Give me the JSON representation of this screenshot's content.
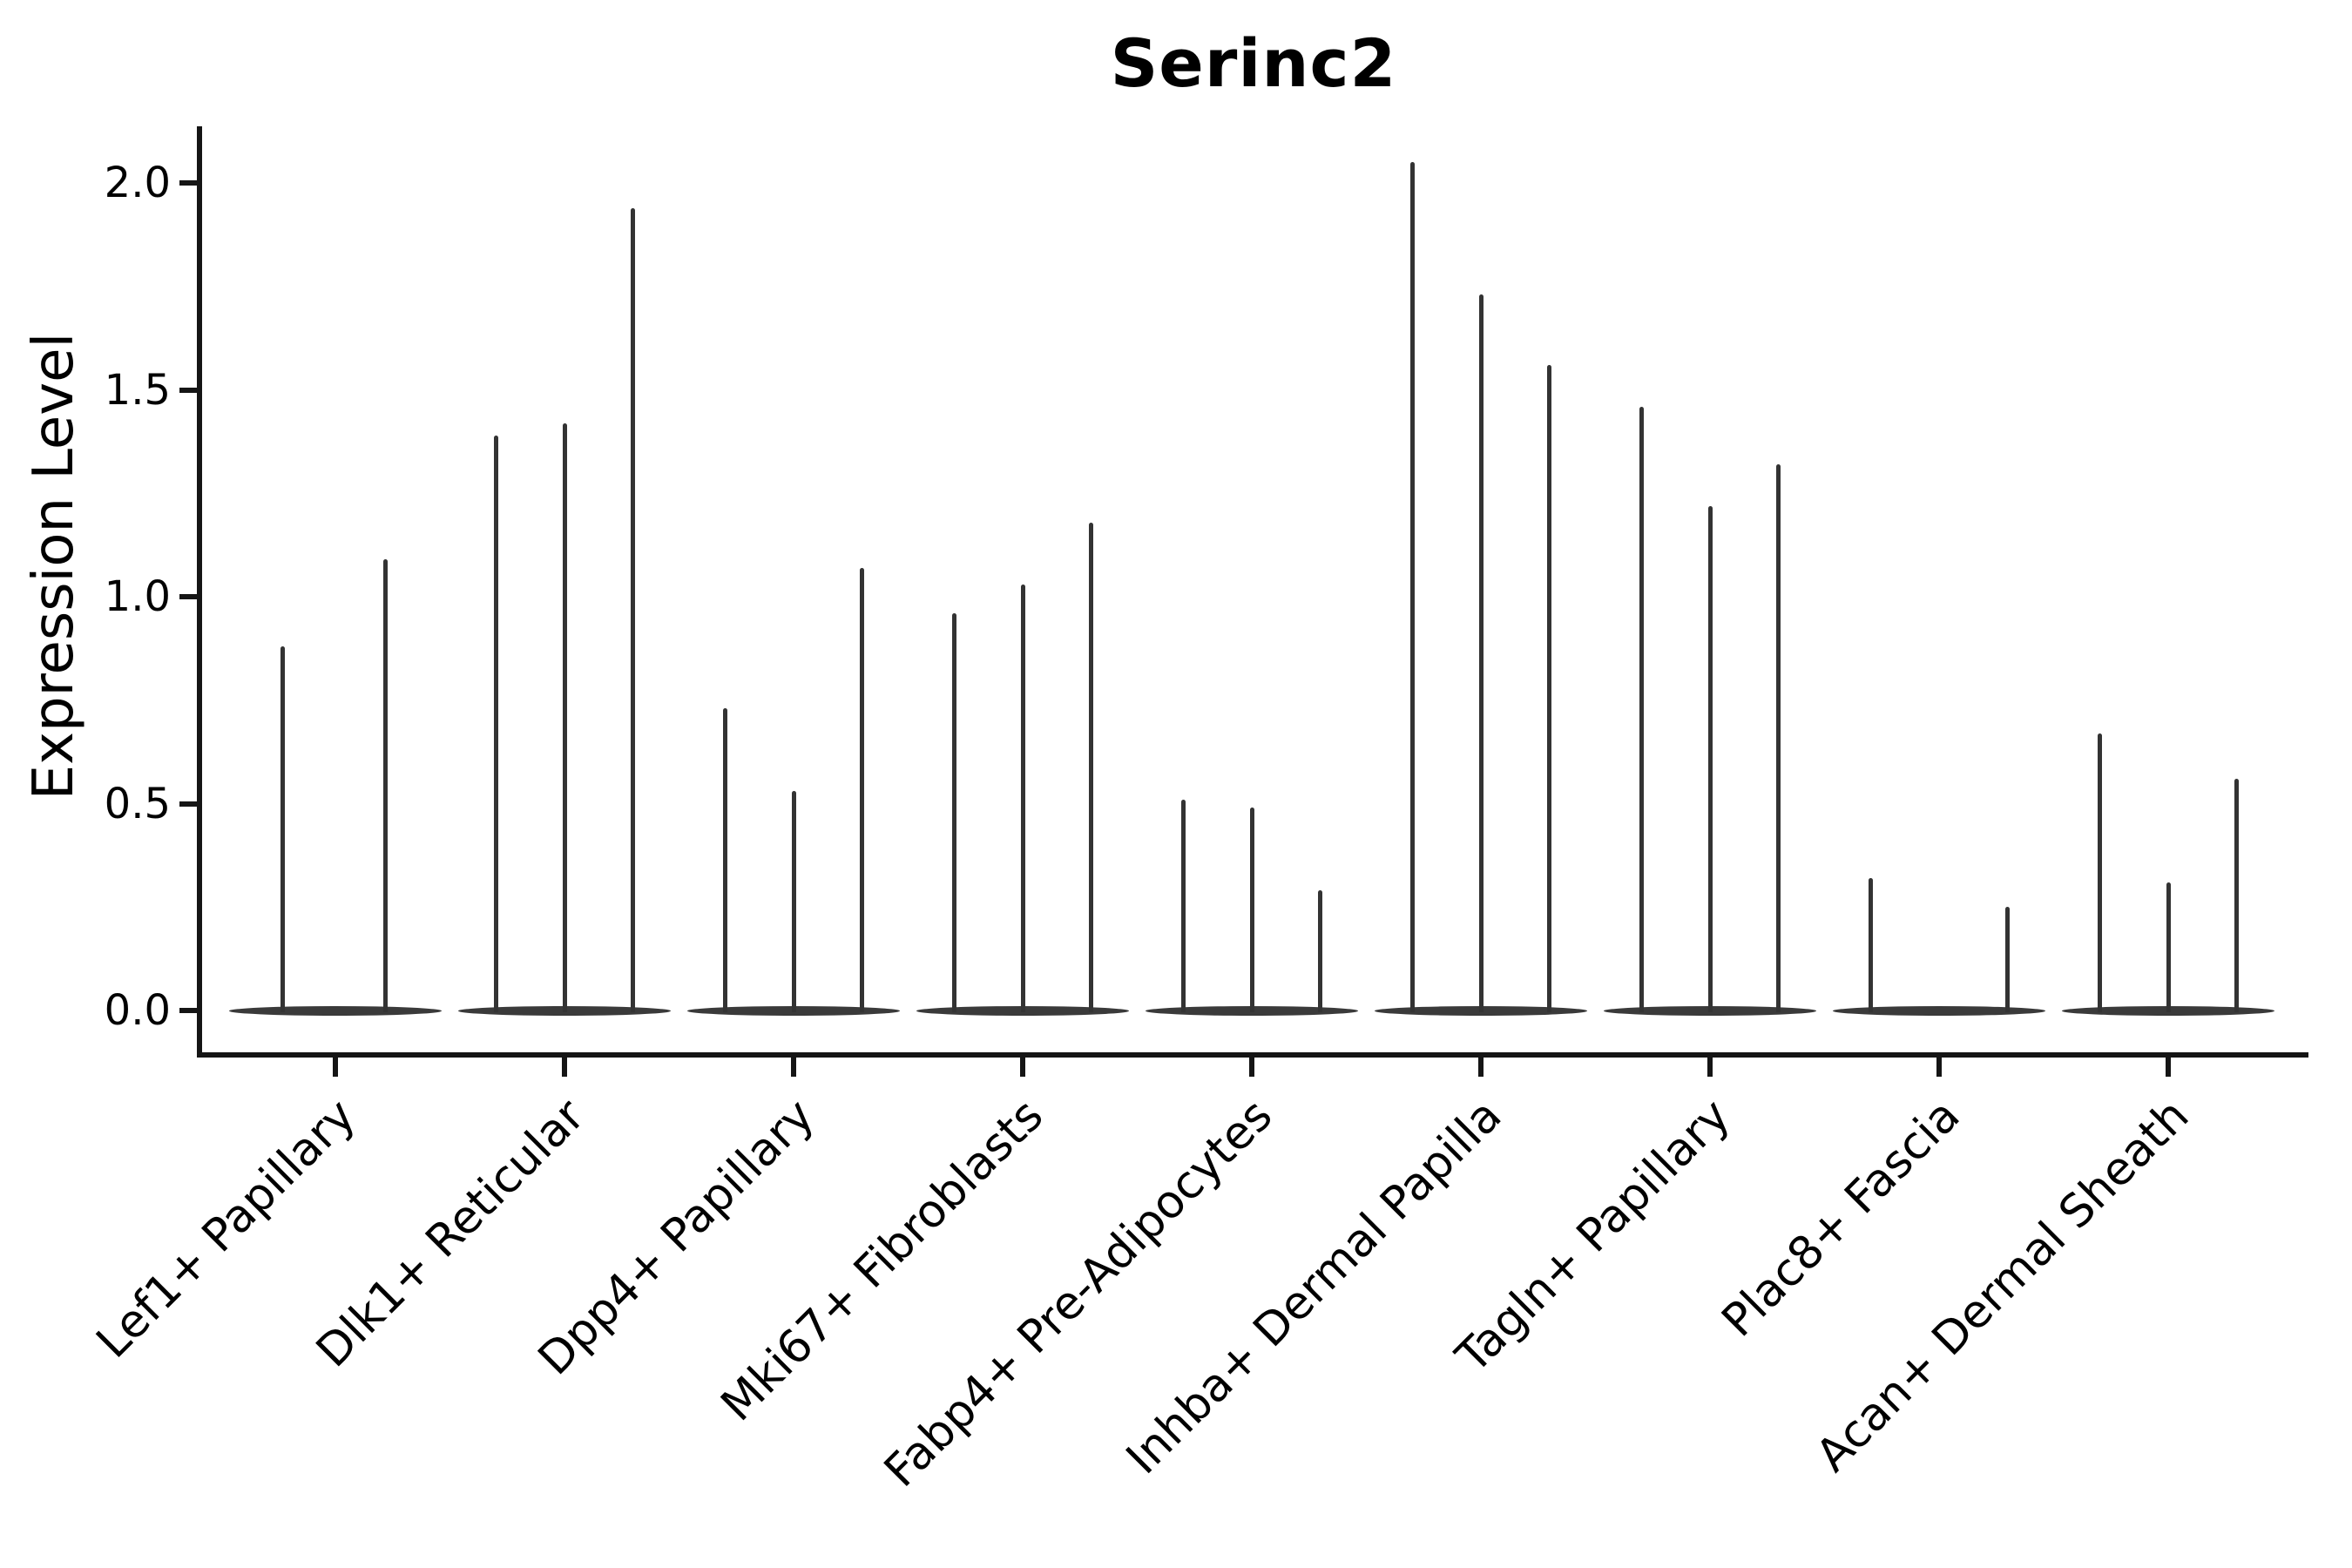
{
  "title": "Serinc2",
  "axes": {
    "ylabel": "Expression Level",
    "ytick_labels": [
      "0.0",
      "0.5",
      "1.0",
      "1.5",
      "2.0"
    ]
  },
  "colors": {
    "background": "#ffffff",
    "violin": "#333333",
    "violin_base": "#3a3a3a",
    "spine": "#151515",
    "text": "#000000"
  },
  "chart_data": {
    "type": "violin",
    "title": "Serinc2",
    "xlabel": "",
    "ylabel": "Expression Level",
    "ylim": [
      0,
      2.12
    ],
    "yticks": [
      0.0,
      0.5,
      1.0,
      1.5,
      2.0
    ],
    "grid": false,
    "legend": false,
    "style_note": "needle-thin violins (spikes of max expression) rising from flat lens-shaped bases at 0; 2-3 dodged violins per category",
    "categories": [
      "Lef1+ Papillary",
      "Dlk1+ Reticular",
      "Dpp4+ Papillary",
      "Mki67+ Fibroblasts",
      "Fabp4+ Pre-Adipocytes",
      "Inhba+ Dermal Papilla",
      "Tagln+ Papillary",
      "Plac8+ Fascia",
      "Acan+ Dermal Sheath"
    ],
    "violins": [
      {
        "category": "Lef1+ Papillary",
        "spikes": [
          {
            "offset": -0.23,
            "max": 0.88
          },
          {
            "offset": 0.22,
            "max": 1.09
          }
        ]
      },
      {
        "category": "Dlk1+ Reticular",
        "spikes": [
          {
            "offset": -0.3,
            "max": 1.39
          },
          {
            "offset": 0.0,
            "max": 1.42
          },
          {
            "offset": 0.3,
            "max": 1.94
          }
        ]
      },
      {
        "category": "Dpp4+ Papillary",
        "spikes": [
          {
            "offset": -0.3,
            "max": 0.73
          },
          {
            "offset": 0.0,
            "max": 0.53
          },
          {
            "offset": 0.3,
            "max": 1.07
          }
        ]
      },
      {
        "category": "Mki67+ Fibroblasts",
        "spikes": [
          {
            "offset": -0.3,
            "max": 0.96
          },
          {
            "offset": 0.0,
            "max": 1.03
          },
          {
            "offset": 0.3,
            "max": 1.18
          }
        ]
      },
      {
        "category": "Fabp4+ Pre-Adipocytes",
        "spikes": [
          {
            "offset": -0.3,
            "max": 0.51
          },
          {
            "offset": 0.0,
            "max": 0.49
          },
          {
            "offset": 0.3,
            "max": 0.29
          }
        ]
      },
      {
        "category": "Inhba+ Dermal Papilla",
        "spikes": [
          {
            "offset": -0.3,
            "max": 2.05
          },
          {
            "offset": 0.0,
            "max": 1.73
          },
          {
            "offset": 0.3,
            "max": 1.56
          }
        ]
      },
      {
        "category": "Tagln+ Papillary",
        "spikes": [
          {
            "offset": -0.3,
            "max": 1.46
          },
          {
            "offset": 0.0,
            "max": 1.22
          },
          {
            "offset": 0.3,
            "max": 1.32
          }
        ]
      },
      {
        "category": "Plac8+ Fascia",
        "spikes": [
          {
            "offset": -0.3,
            "max": 0.32
          },
          {
            "offset": 0.3,
            "max": 0.25
          }
        ]
      },
      {
        "category": "Acan+ Dermal Sheath",
        "spikes": [
          {
            "offset": -0.3,
            "max": 0.67
          },
          {
            "offset": 0.0,
            "max": 0.31
          },
          {
            "offset": 0.3,
            "max": 0.56
          }
        ]
      }
    ]
  }
}
